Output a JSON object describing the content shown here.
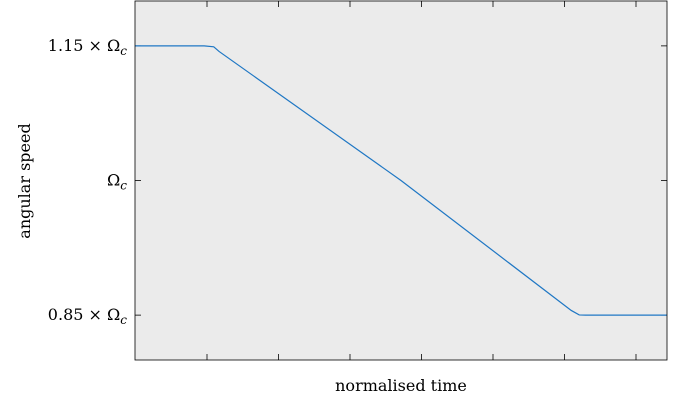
{
  "chart_data": {
    "type": "line",
    "xlabel": "normalised time",
    "ylabel": "angular speed",
    "xlim": [
      0,
      1
    ],
    "ylim": [
      0.8,
      1.2
    ],
    "x_tick_count": 7,
    "yticks": [
      {
        "value": 0.85,
        "label": "0.85 × Ωc"
      },
      {
        "value": 1.0,
        "label": "Ωc"
      },
      {
        "value": 1.15,
        "label": "1.15 × Ωc"
      }
    ],
    "grid": false,
    "colors": {
      "background": "#ebebeb",
      "line": "#1f77c4",
      "axis": "#000000"
    },
    "series": [
      {
        "x": [
          0,
          0.13,
          0.148,
          0.158,
          0.5,
          0.82,
          0.835,
          0.847,
          1.0
        ],
        "y": [
          1.15,
          1.15,
          1.149,
          1.1438,
          1.0,
          0.8552,
          0.8502,
          0.85,
          0.85
        ]
      }
    ]
  }
}
